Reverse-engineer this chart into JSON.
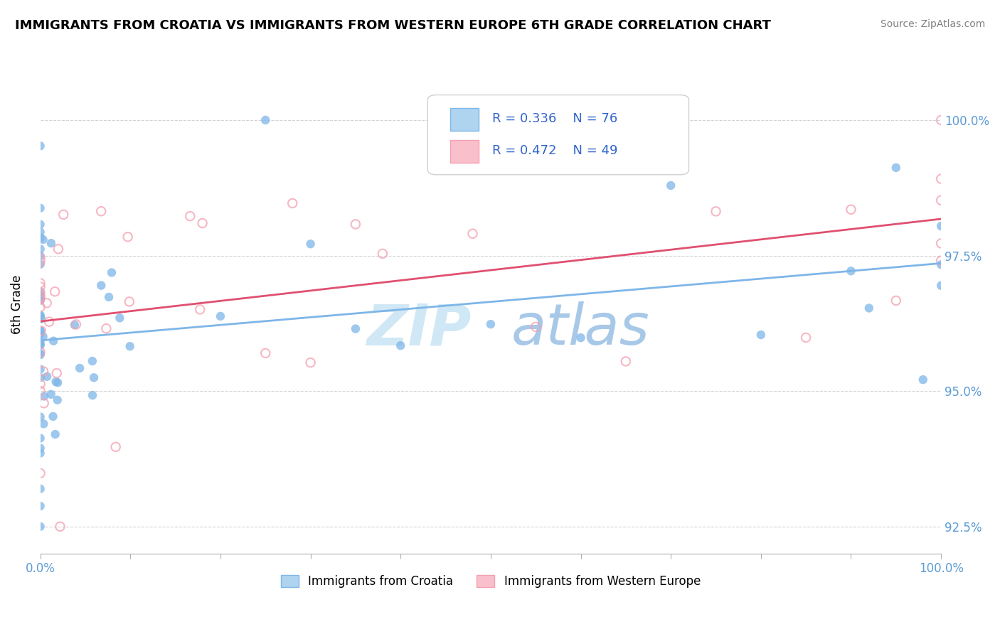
{
  "title": "IMMIGRANTS FROM CROATIA VS IMMIGRANTS FROM WESTERN EUROPE 6TH GRADE CORRELATION CHART",
  "source": "Source: ZipAtlas.com",
  "ylabel": "6th Grade",
  "y_ticks": [
    92.5,
    95.0,
    97.5,
    100.0
  ],
  "x_ticks": [
    0,
    10,
    20,
    30,
    40,
    50,
    60,
    70,
    80,
    90,
    100
  ],
  "legend_r1": "R = 0.336",
  "legend_n1": "N = 76",
  "legend_r2": "R = 0.472",
  "legend_n2": "N = 49",
  "color_croatia": "#7EB6E8",
  "color_croatia_fill": "#AED4F0",
  "color_western": "#F4A0B0",
  "color_western_fill": "#F9C0CC",
  "color_trendline_croatia": "#7EB6E8",
  "color_trendline_western": "#E05070",
  "color_axis_labels": "#5B9BD5",
  "color_legend_text": "#3366CC",
  "watermark_zip": "ZIP",
  "watermark_atlas": "atlas",
  "watermark_color_zip": "#D0E8F5",
  "watermark_color_atlas": "#A8C8E8",
  "bottom_legend_croatia": "Immigrants from Croatia",
  "bottom_legend_western": "Immigrants from Western Europe"
}
